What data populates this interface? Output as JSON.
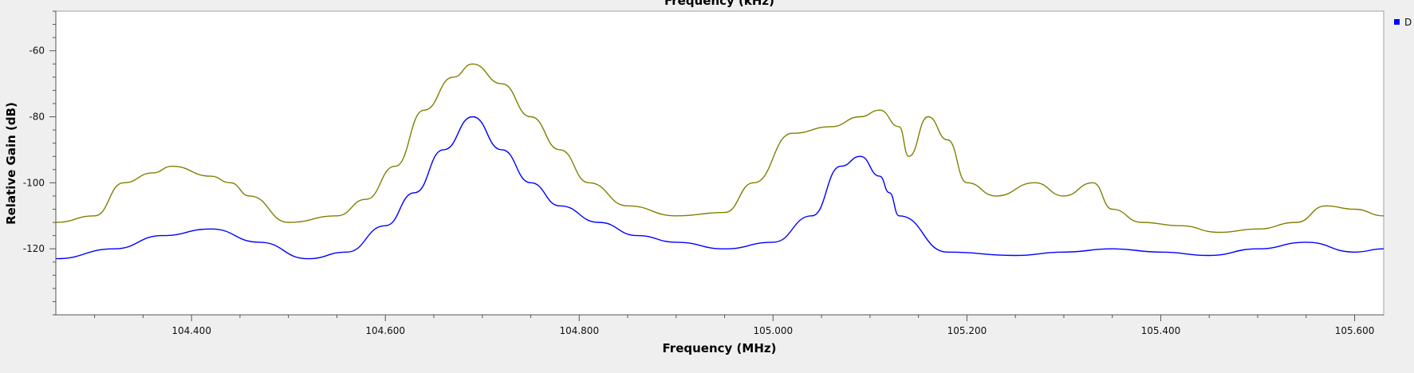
{
  "chart_data": {
    "type": "line",
    "top_axis_label": "Frequency (kHz)",
    "xlabel": "Frequency (MHz)",
    "ylabel": "Relative Gain (dB)",
    "xlim": [
      104.26,
      105.63
    ],
    "ylim": [
      -140,
      -48
    ],
    "x_ticks": [
      104.4,
      104.6,
      104.8,
      105.0,
      105.2,
      105.4,
      105.6
    ],
    "x_tick_labels": [
      "104.400",
      "104.600",
      "104.800",
      "105.000",
      "105.200",
      "105.400",
      "105.600"
    ],
    "y_ticks": [
      -60,
      -80,
      -100,
      -120
    ],
    "y_tick_labels": [
      "-60",
      "-80",
      "-100",
      "-120"
    ],
    "grid": false,
    "legend_position": "top-right",
    "legend_entries": [
      {
        "label": "D",
        "color": "#0000ff"
      }
    ],
    "series": [
      {
        "color": "#808000",
        "x": [
          104.26,
          104.3,
          104.33,
          104.36,
          104.38,
          104.42,
          104.44,
          104.46,
          104.5,
          104.55,
          104.58,
          104.61,
          104.64,
          104.67,
          104.69,
          104.72,
          104.75,
          104.78,
          104.81,
          104.85,
          104.9,
          104.95,
          104.98,
          105.02,
          105.06,
          105.09,
          105.11,
          105.13,
          105.14,
          105.16,
          105.18,
          105.2,
          105.23,
          105.27,
          105.3,
          105.33,
          105.35,
          105.38,
          105.42,
          105.46,
          105.5,
          105.54,
          105.57,
          105.6,
          105.63
        ],
        "y": [
          -112,
          -110,
          -100,
          -97,
          -95,
          -98,
          -100,
          -104,
          -112,
          -110,
          -105,
          -95,
          -78,
          -68,
          -64,
          -70,
          -80,
          -90,
          -100,
          -107,
          -110,
          -109,
          -100,
          -85,
          -83,
          -80,
          -78,
          -83,
          -92,
          -80,
          -87,
          -100,
          -104,
          -100,
          -104,
          -100,
          -108,
          -112,
          -113,
          -115,
          -114,
          -112,
          -107,
          -108,
          -110
        ]
      },
      {
        "color": "#0000ff",
        "x": [
          104.26,
          104.32,
          104.37,
          104.42,
          104.47,
          104.52,
          104.56,
          104.6,
          104.63,
          104.66,
          104.69,
          104.72,
          104.75,
          104.78,
          104.82,
          104.86,
          104.9,
          104.95,
          105.0,
          105.04,
          105.07,
          105.09,
          105.11,
          105.12,
          105.13,
          105.18,
          105.25,
          105.3,
          105.35,
          105.4,
          105.45,
          105.5,
          105.55,
          105.6,
          105.63
        ],
        "y": [
          -123,
          -120,
          -116,
          -114,
          -118,
          -123,
          -121,
          -113,
          -103,
          -90,
          -80,
          -90,
          -100,
          -107,
          -112,
          -116,
          -118,
          -120,
          -118,
          -110,
          -95,
          -92,
          -98,
          -103,
          -110,
          -121,
          -122,
          -121,
          -120,
          -121,
          -122,
          -120,
          -118,
          -121,
          -120
        ]
      }
    ]
  }
}
